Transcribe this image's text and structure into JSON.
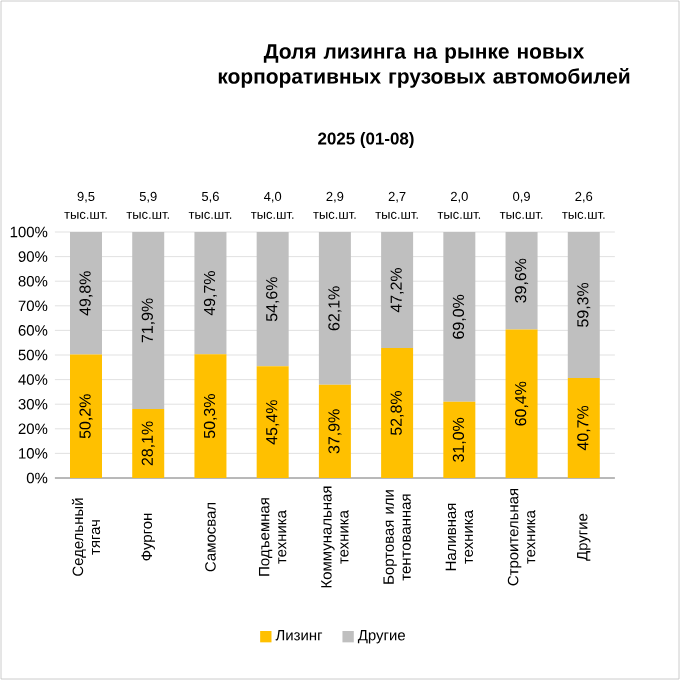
{
  "chart_data": {
    "type": "bar",
    "stacked": true,
    "title": "Доля лизинга на рынке новых корпоративных грузовых автомобилей",
    "subtitle": "2025 (01-08)",
    "categories": [
      "Седельный тягач",
      "Фургон",
      "Самосвал",
      "Подъемная техника",
      "Коммунальная техника",
      "Бортовая или тентованная",
      "Наливная техника",
      "Строительная техника",
      "Другие"
    ],
    "series": [
      {
        "name": "Лизинг",
        "color": "#ffc000",
        "values": [
          50.2,
          28.1,
          50.3,
          45.4,
          37.9,
          52.8,
          31.0,
          60.4,
          40.7
        ],
        "value_labels": [
          "50,2%",
          "28,1%",
          "50,3%",
          "45,4%",
          "37,9%",
          "52,8%",
          "31,0%",
          "60,4%",
          "40,7%"
        ]
      },
      {
        "name": "Другие",
        "color": "#bfbfbf",
        "values": [
          49.8,
          71.9,
          49.7,
          54.6,
          62.1,
          47.2,
          69.0,
          39.6,
          59.3
        ],
        "value_labels": [
          "49,8%",
          "71,9%",
          "49,7%",
          "54,6%",
          "62,1%",
          "47,2%",
          "69,0%",
          "39,6%",
          "59,3%"
        ]
      }
    ],
    "annotations": [
      "9,5 тыс.шт.",
      "5,9 тыс.шт.",
      "5,6 тыс.шт.",
      "4,0 тыс.шт.",
      "2,9 тыс.шт.",
      "2,7 тыс.шт.",
      "2,0 тыс.шт.",
      "0,9 тыс.шт.",
      "2,6 тыс.шт."
    ],
    "ylim": [
      0,
      100
    ],
    "yticks": [
      {
        "value": 0,
        "label": "0%"
      },
      {
        "value": 10,
        "label": "10%"
      },
      {
        "value": 20,
        "label": "20%"
      },
      {
        "value": 30,
        "label": "30%"
      },
      {
        "value": 40,
        "label": "40%"
      },
      {
        "value": 50,
        "label": "50%"
      },
      {
        "value": 60,
        "label": "60%"
      },
      {
        "value": 70,
        "label": "70%"
      },
      {
        "value": 80,
        "label": "80%"
      },
      {
        "value": 90,
        "label": "90%"
      },
      {
        "value": 100,
        "label": "100%"
      }
    ],
    "grid": "y",
    "legend": "bottom"
  }
}
